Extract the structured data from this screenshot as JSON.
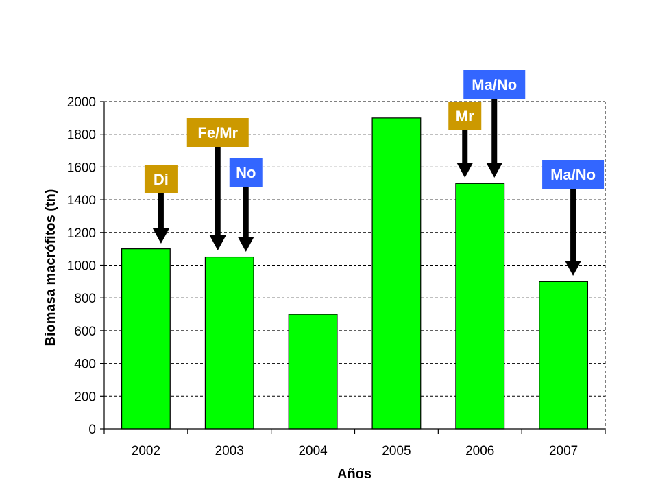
{
  "chart_data": {
    "type": "bar",
    "categories": [
      "2002",
      "2003",
      "2004",
      "2005",
      "2006",
      "2007"
    ],
    "values": [
      1100,
      1050,
      700,
      1900,
      1500,
      900
    ],
    "xlabel": "Años",
    "ylabel": "Biomasa macrófitos (tn)",
    "ylim": [
      0,
      2000
    ],
    "yticks": [
      "0",
      "200",
      "400",
      "600",
      "800",
      "1000",
      "1200",
      "1400",
      "1600",
      "1800",
      "2000"
    ],
    "grid": true,
    "bar_color": "#00ff00",
    "annotations": [
      {
        "text": "Di",
        "category": "2002",
        "color": "#cc9900"
      },
      {
        "text": "Fe/Mr",
        "category": "2003",
        "color": "#cc9900"
      },
      {
        "text": "No",
        "category": "2003",
        "color": "#3366ff"
      },
      {
        "text": "Mr",
        "category": "2006",
        "color": "#cc9900"
      },
      {
        "text": "Ma/No",
        "category": "2006",
        "color": "#3366ff"
      },
      {
        "text": "Ma/No",
        "category": "2007",
        "color": "#3366ff"
      }
    ]
  }
}
